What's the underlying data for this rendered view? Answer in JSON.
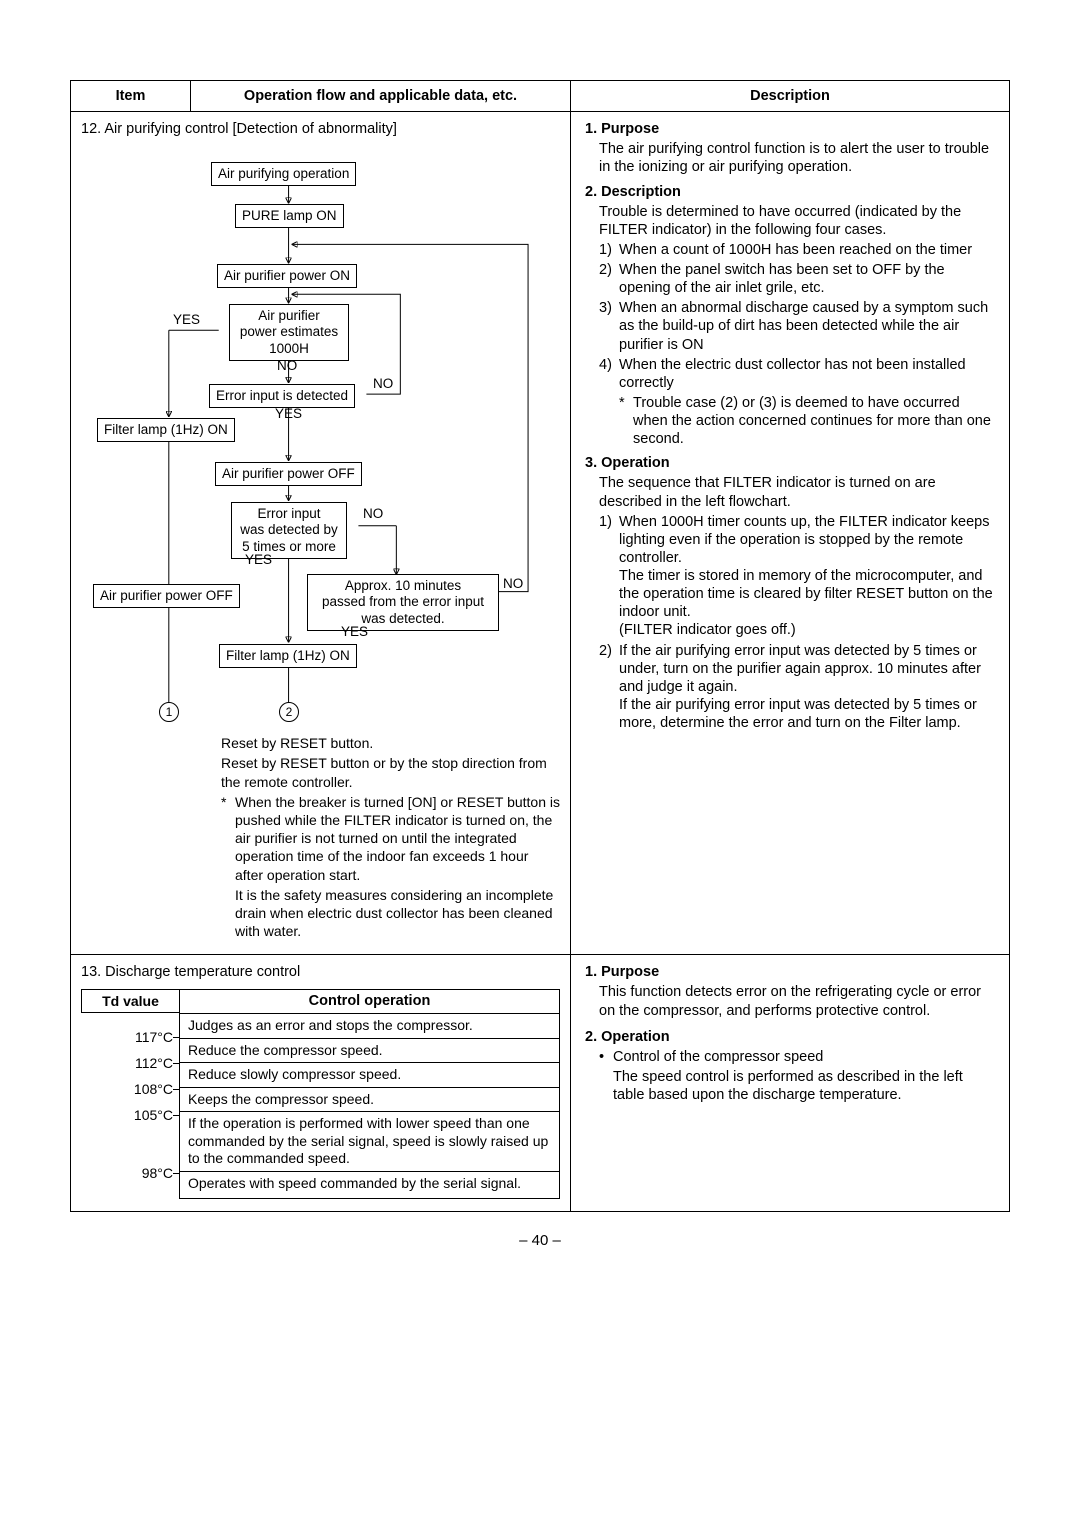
{
  "header": {
    "item": "Item",
    "flow": "Operation flow and applicable data, etc.",
    "desc": "Description"
  },
  "s12": {
    "title": "12.  Air purifying control [Detection of abnormality]",
    "flow": {
      "n1": "Air purifying operation",
      "n2": "PURE lamp ON",
      "n3": "Air purifier power ON",
      "n4": "Air purifier\npower estimates\n1000H",
      "n5": "Error input is detected",
      "n6": "Filter lamp (1Hz) ON",
      "n7": "Air purifier power OFF",
      "n8": "Error input\nwas detected by\n5 times or more",
      "n9": "Air purifier power OFF",
      "n10": "Approx. 10 minutes\npassed from the error input\nwas detected.",
      "n11": "Filter lamp (1Hz) ON",
      "c1": "1",
      "c2": "2",
      "yes": "YES",
      "no": "NO"
    },
    "notes": {
      "l1": "Reset by RESET button.",
      "l2": "Reset by RESET button or by the stop direction from the remote controller.",
      "l3": "When the breaker is turned [ON] or RESET button is pushed while the FILTER indicator is turned on, the air purifier is not turned on until the integrated operation time of the indoor fan exceeds 1 hour after operation start.",
      "l4": "It is the safety measures considering an incomplete drain when electric dust collector has been cleaned with water."
    },
    "desc": {
      "h1": "1.  Purpose",
      "p1": "The air purifying control function is to alert the user to trouble in the ionizing or air purifying operation.",
      "h2": "2.  Description",
      "p2": "Trouble is determined to have occurred (indicated by the FILTER indicator) in the following four cases.",
      "li1": "When a count of 1000H has been reached on the timer",
      "li2": "When the panel switch has been set to OFF by the opening of the air inlet grile, etc.",
      "li3": "When an abnormal discharge caused by a symptom such as the build-up of dirt has been detected while the air purifier is ON",
      "li4": "When the electric dust collector has not been installed correctly",
      "li4star": "Trouble case (2) or (3) is deemed to have occurred when the action concerned continues for more than one second.",
      "h3": "3.  Operation",
      "p3": "The sequence that FILTER indicator is turned on are described in the left flowchart.",
      "op1a": "When 1000H timer counts up, the FILTER indicator keeps lighting even if the operation is stopped by the remote controller.",
      "op1b": "The timer is stored in memory of the microcomputer, and the operation time is cleared by filter RESET button on the indoor unit.",
      "op1c": "(FILTER indicator goes off.)",
      "op2a": "If the air purifying error input was detected by 5 times or under, turn on the purifier again approx. 10 minutes after and judge it again.",
      "op2b": "If the air purifying error input was detected by 5 times or more, determine the error and turn on the Filter lamp."
    }
  },
  "s13": {
    "title": "13.  Discharge temperature control",
    "table": {
      "th_td": "Td value",
      "th_op": "Control operation",
      "temps": [
        "117°C",
        "112°C",
        "108°C",
        "105°C",
        "98°C"
      ],
      "row1": "Judges as an error and stops the compressor.",
      "row2": "Reduce the compressor speed.",
      "row3": "Reduce slowly compressor speed.",
      "row4": "Keeps the compressor speed.",
      "row5": "If the operation is performed with lower speed than one commanded by the serial signal, speed is slowly raised up to the commanded speed.",
      "row6": "Operates with speed commanded by the serial signal."
    },
    "desc": {
      "h1": "1.  Purpose",
      "p1": "This function detects error on the refrigerating cycle or error on the compressor, and performs protective control.",
      "h2": "2.  Operation",
      "b1": "Control of the compressor speed",
      "b2": "The speed control is performed as described in the left table based upon the discharge temperature."
    }
  },
  "page_num": "– 40 –"
}
